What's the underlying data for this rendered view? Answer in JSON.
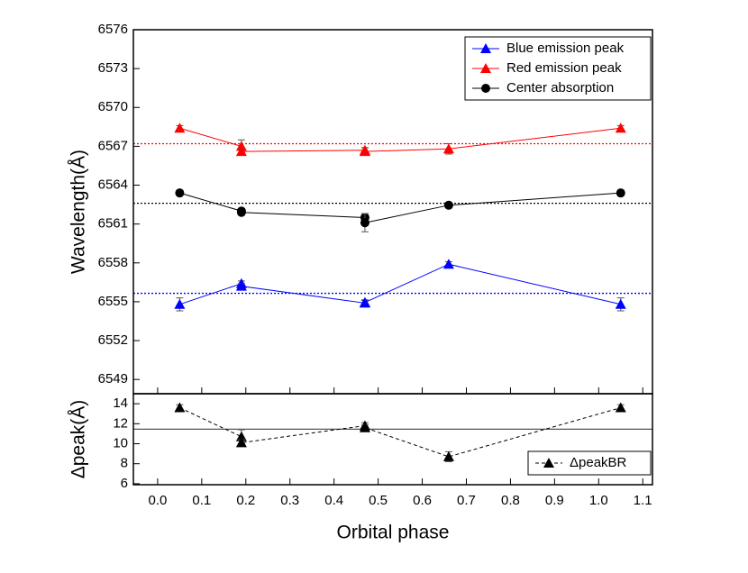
{
  "chart_data": [
    {
      "type": "line",
      "ylabel": "Wavelength(Å)",
      "x": [
        0.05,
        0.19,
        0.19,
        0.47,
        0.47,
        0.66,
        1.05
      ],
      "xlim": [
        -0.055,
        1.122
      ],
      "ylim": [
        6547.9,
        6576
      ],
      "yticks": [
        6549,
        6552,
        6555,
        6558,
        6561,
        6564,
        6567,
        6570,
        6573,
        6576
      ],
      "legend": "top-right",
      "series": [
        {
          "name": "Blue emission peak",
          "color": "#0000ff",
          "marker": "triangle",
          "linestyle": "solid",
          "values": [
            6554.8,
            6556.4,
            6556.2,
            6554.9,
            6554.95,
            6557.9,
            6554.8
          ],
          "errors": [
            0.5,
            0.2,
            0.2,
            0.2,
            0.2,
            0.2,
            0.5
          ]
        },
        {
          "name": "Red emission peak",
          "color": "#ff0000",
          "marker": "triangle",
          "linestyle": "solid",
          "values": [
            6568.4,
            6567.0,
            6566.6,
            6566.7,
            6566.6,
            6566.8,
            6568.4
          ],
          "errors": [
            0.2,
            0.5,
            0.3,
            0.2,
            0.3,
            0.4,
            0.2
          ]
        },
        {
          "name": "Center absorption",
          "color": "#000000",
          "marker": "circle",
          "linestyle": "solid",
          "values": [
            6563.4,
            6562.0,
            6561.9,
            6561.5,
            6561.1,
            6562.45,
            6563.4
          ],
          "errors": [
            0.2,
            0.2,
            0.2,
            0.3,
            0.7,
            0.2,
            0.2
          ]
        }
      ],
      "reference_lines": [
        {
          "value": 6567.2,
          "color": "#ff0000",
          "style": "dotted"
        },
        {
          "value": 6562.6,
          "color": "#000000",
          "style": "dotted"
        },
        {
          "value": 6555.65,
          "color": "#0000ff",
          "style": "dotted"
        }
      ]
    },
    {
      "type": "line",
      "xlabel": "Orbital phase",
      "ylabel": "Δpeak(Å)",
      "x": [
        0.05,
        0.19,
        0.19,
        0.47,
        0.47,
        0.66,
        1.05
      ],
      "xlim": [
        -0.055,
        1.122
      ],
      "ylim": [
        5.9,
        15
      ],
      "xticks": [
        {
          "value": 0,
          "label": "0.0"
        },
        0.1,
        0.2,
        0.3,
        0.4,
        0.5,
        0.6,
        0.7,
        0.8,
        0.9,
        {
          "value": 1,
          "label": "1.0"
        },
        1.1
      ],
      "yticks": [
        6,
        8,
        10,
        12,
        14
      ],
      "legend": "bottom-right",
      "series": [
        {
          "name": "ΔpeakBR",
          "color": "#000000",
          "marker": "triangle",
          "linestyle": "dashed",
          "values": [
            13.6,
            10.7,
            10.1,
            11.8,
            11.6,
            8.7,
            13.6
          ],
          "errors": [
            0.3,
            0.7,
            0.3,
            0.3,
            0.3,
            0.5,
            0.3
          ]
        }
      ],
      "reference_lines": [
        {
          "value": 11.45,
          "color": "#555555",
          "style": "solid"
        }
      ]
    }
  ]
}
